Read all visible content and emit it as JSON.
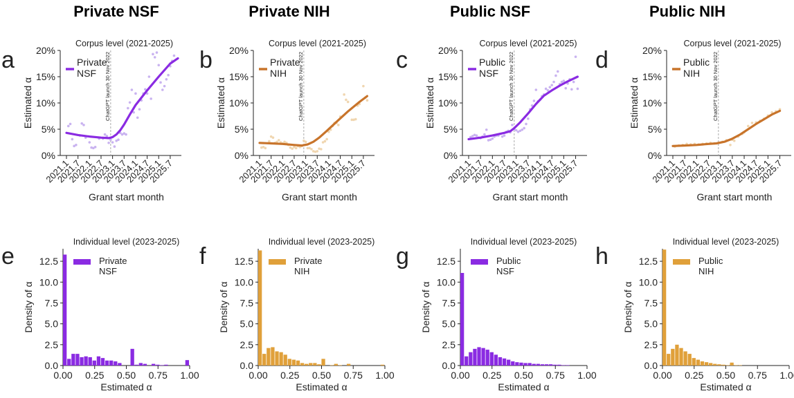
{
  "columns": [
    {
      "title": "Private NSF"
    },
    {
      "title": "Private NIH"
    },
    {
      "title": "Public NSF"
    },
    {
      "title": "Public NIH"
    }
  ],
  "colors": {
    "nsf": "#8a2be2",
    "nsf_light": "#c9b3f0",
    "nih_line": "#c8742b",
    "nih_light": "#f0d6b0",
    "nih_hist": "#e0a03a",
    "chatgpt_line": "#aaaaaa"
  },
  "chart_data": [
    {
      "panel": "a",
      "type": "line",
      "title": "Corpus level (2021-2025)",
      "xlabel": "Grant start month",
      "ylabel": "Estimated α",
      "legend": [
        "Private",
        "NSF"
      ],
      "legend_position": "top-left",
      "color_key": "nsf",
      "scatter_color_key": "nsf_light",
      "xticks": [
        "2021.1",
        "2021.7",
        "2022.1",
        "2022.7",
        "2023.1",
        "2023.7",
        "2024.1",
        "2024.7",
        "2025.1",
        "2025.7"
      ],
      "yticks": [
        "0%",
        "5%",
        "10%",
        "15%",
        "20%"
      ],
      "ylim": [
        0,
        20
      ],
      "annotation": "ChatGPT launch 30 Nov 2022",
      "trend": [
        [
          0,
          4.3
        ],
        [
          6,
          3.9
        ],
        [
          12,
          3.6
        ],
        [
          18,
          3.4
        ],
        [
          22,
          3.3
        ],
        [
          24,
          3.5
        ],
        [
          26,
          4.0
        ],
        [
          28,
          4.8
        ],
        [
          30,
          5.9
        ],
        [
          33,
          7.8
        ],
        [
          36,
          9.6
        ],
        [
          42,
          12.4
        ],
        [
          48,
          15.0
        ],
        [
          54,
          17.5
        ],
        [
          58,
          18.5
        ]
      ],
      "scatter": [
        [
          1,
          5.6
        ],
        [
          2,
          6.0
        ],
        [
          3,
          3.1
        ],
        [
          4,
          1.8
        ],
        [
          5,
          2.0
        ],
        [
          7,
          3.8
        ],
        [
          8,
          6.1
        ],
        [
          9,
          5.8
        ],
        [
          10,
          3.4
        ],
        [
          12,
          2.5
        ],
        [
          13,
          1.5
        ],
        [
          14,
          1.4
        ],
        [
          15,
          1.6
        ],
        [
          17,
          3.2
        ],
        [
          19,
          3.2
        ],
        [
          20,
          4.0
        ],
        [
          21,
          3.7
        ],
        [
          22,
          2.4
        ],
        [
          23,
          3.0
        ],
        [
          24,
          2.5
        ],
        [
          25,
          1.7
        ],
        [
          26,
          2.8
        ],
        [
          27,
          3.0
        ],
        [
          28,
          4.3
        ],
        [
          29,
          4.0
        ],
        [
          30,
          4.2
        ],
        [
          31,
          4.0
        ],
        [
          32,
          9.0
        ],
        [
          33,
          10.1
        ],
        [
          34,
          12.5
        ],
        [
          35,
          8.2
        ],
        [
          36,
          11.8
        ],
        [
          37,
          7.2
        ],
        [
          38,
          8.8
        ],
        [
          39,
          10.5
        ],
        [
          40,
          11.8
        ],
        [
          41,
          12.6
        ],
        [
          42,
          11.8
        ],
        [
          43,
          15.0
        ],
        [
          44,
          10.8
        ],
        [
          45,
          19.3
        ],
        [
          46,
          18.7
        ],
        [
          47,
          19.6
        ],
        [
          48,
          17.2
        ],
        [
          49,
          13.9
        ],
        [
          50,
          12.5
        ],
        [
          51,
          13.2
        ],
        [
          52,
          14.5
        ],
        [
          53,
          15.3
        ],
        [
          54,
          17.0
        ],
        [
          55,
          18.0
        ],
        [
          56,
          19.0
        ]
      ]
    },
    {
      "panel": "b",
      "type": "line",
      "title": "Corpus level (2021-2025)",
      "xlabel": "Grant start month",
      "ylabel": "Estimated α",
      "legend": [
        "Private",
        "NIH"
      ],
      "legend_position": "top-left",
      "color_key": "nih_line",
      "scatter_color_key": "nih_light",
      "xticks": [
        "2021.1",
        "2021.7",
        "2022.1",
        "2022.7",
        "2023.1",
        "2023.7",
        "2024.1",
        "2024.7",
        "2025.1",
        "2025.7"
      ],
      "yticks": [
        "0%",
        "5%",
        "10%",
        "15%",
        "20%"
      ],
      "ylim": [
        0,
        20
      ],
      "annotation": "ChatGPT launch 30 Nov 2022",
      "trend": [
        [
          0,
          2.4
        ],
        [
          6,
          2.3
        ],
        [
          12,
          2.2
        ],
        [
          18,
          2.0
        ],
        [
          22,
          1.9
        ],
        [
          25,
          2.1
        ],
        [
          28,
          2.6
        ],
        [
          31,
          3.4
        ],
        [
          35,
          4.7
        ],
        [
          40,
          6.4
        ],
        [
          46,
          8.4
        ],
        [
          52,
          10.2
        ],
        [
          56,
          11.3
        ]
      ],
      "scatter": [
        [
          1,
          1.5
        ],
        [
          2,
          1.6
        ],
        [
          3,
          1.4
        ],
        [
          5,
          2.7
        ],
        [
          6,
          3.6
        ],
        [
          7,
          3.4
        ],
        [
          8,
          2.4
        ],
        [
          9,
          2.6
        ],
        [
          10,
          2.9
        ],
        [
          11,
          2.5
        ],
        [
          12,
          2.3
        ],
        [
          13,
          2.6
        ],
        [
          14,
          2.4
        ],
        [
          15,
          2.0
        ],
        [
          16,
          1.5
        ],
        [
          17,
          1.3
        ],
        [
          18,
          1.6
        ],
        [
          19,
          1.4
        ],
        [
          20,
          1.8
        ],
        [
          21,
          1.6
        ],
        [
          22,
          1.8
        ],
        [
          23,
          2.8
        ],
        [
          24,
          2.6
        ],
        [
          25,
          1.4
        ],
        [
          26,
          1.4
        ],
        [
          27,
          1.2
        ],
        [
          28,
          0.8
        ],
        [
          29,
          0.7
        ],
        [
          30,
          0.8
        ],
        [
          31,
          1.3
        ],
        [
          32,
          1.2
        ],
        [
          33,
          2.5
        ],
        [
          34,
          2.7
        ],
        [
          35,
          3.1
        ],
        [
          36,
          4.5
        ],
        [
          37,
          4.9
        ],
        [
          38,
          5.6
        ],
        [
          39,
          6.2
        ],
        [
          40,
          6.2
        ],
        [
          41,
          5.8
        ],
        [
          42,
          7.4
        ],
        [
          44,
          11.6
        ],
        [
          45,
          10.6
        ],
        [
          46,
          10.2
        ],
        [
          48,
          6.8
        ],
        [
          49,
          6.8
        ],
        [
          50,
          6.9
        ],
        [
          51,
          9.5
        ],
        [
          52,
          9.8
        ],
        [
          54,
          13.2
        ],
        [
          55,
          11.0
        ],
        [
          56,
          10.5
        ]
      ]
    },
    {
      "panel": "c",
      "type": "line",
      "title": "Corpus level (2021-2025)",
      "xlabel": "Grant start month",
      "ylabel": "Estimated α",
      "legend": [
        "Public",
        "NSF"
      ],
      "legend_position": "top-left",
      "color_key": "nsf",
      "scatter_color_key": "nsf_light",
      "xticks": [
        "2021.1",
        "2021.7",
        "2022.1",
        "2022.7",
        "2023.1",
        "2023.7",
        "2024.1",
        "2024.7",
        "2025.1",
        "2025.7"
      ],
      "yticks": [
        "0%",
        "5%",
        "10%",
        "15%",
        "20%"
      ],
      "ylim": [
        0,
        20
      ],
      "annotation": "ChatGPT launch 30 Nov 2022",
      "trend": [
        [
          0,
          3.1
        ],
        [
          6,
          3.4
        ],
        [
          12,
          3.8
        ],
        [
          18,
          4.3
        ],
        [
          21,
          4.6
        ],
        [
          23,
          5.2
        ],
        [
          26,
          6.3
        ],
        [
          30,
          8.0
        ],
        [
          34,
          9.8
        ],
        [
          38,
          11.4
        ],
        [
          42,
          12.4
        ],
        [
          46,
          13.3
        ],
        [
          50,
          14.1
        ],
        [
          55,
          15.0
        ]
      ],
      "scatter": [
        [
          1,
          3.5
        ],
        [
          2,
          3.7
        ],
        [
          3,
          3.9
        ],
        [
          4,
          3.8
        ],
        [
          5,
          3.4
        ],
        [
          6,
          3.3
        ],
        [
          7,
          3.6
        ],
        [
          8,
          4.0
        ],
        [
          9,
          4.9
        ],
        [
          10,
          2.9
        ],
        [
          11,
          3.0
        ],
        [
          12,
          3.2
        ],
        [
          13,
          3.6
        ],
        [
          14,
          3.8
        ],
        [
          15,
          3.8
        ],
        [
          16,
          4.1
        ],
        [
          17,
          3.6
        ],
        [
          18,
          3.8
        ],
        [
          19,
          4.5
        ],
        [
          20,
          4.7
        ],
        [
          21,
          4.4
        ],
        [
          22,
          5.8
        ],
        [
          23,
          5.0
        ],
        [
          24,
          4.8
        ],
        [
          25,
          4.5
        ],
        [
          26,
          4.7
        ],
        [
          27,
          4.9
        ],
        [
          28,
          5.2
        ],
        [
          29,
          6.0
        ],
        [
          30,
          7.0
        ],
        [
          31,
          8.8
        ],
        [
          32,
          9.5
        ],
        [
          33,
          10.4
        ],
        [
          34,
          12.5
        ],
        [
          35,
          10.3
        ],
        [
          36,
          10.6
        ],
        [
          37,
          11.3
        ],
        [
          38,
          11.6
        ],
        [
          39,
          12.7
        ],
        [
          40,
          12.4
        ],
        [
          41,
          13.0
        ],
        [
          42,
          13.4
        ],
        [
          43,
          14.0
        ],
        [
          44,
          15.2
        ],
        [
          45,
          16.0
        ],
        [
          46,
          13.6
        ],
        [
          47,
          14.0
        ],
        [
          48,
          14.2
        ],
        [
          49,
          12.8
        ],
        [
          50,
          13.7
        ],
        [
          51,
          14.5
        ],
        [
          52,
          12.6
        ],
        [
          53,
          14.0
        ],
        [
          54,
          18.8
        ],
        [
          55,
          12.7
        ]
      ]
    },
    {
      "panel": "d",
      "type": "line",
      "title": "Corpus level (2021-2025)",
      "xlabel": "Grant start month",
      "ylabel": "Estimated α",
      "legend": [
        "Public",
        "NIH"
      ],
      "legend_position": "top-left",
      "color_key": "nih_line",
      "scatter_color_key": "nih_light",
      "xticks": [
        "2021.1",
        "2021.7",
        "2022.1",
        "2022.7",
        "2023.1",
        "2023.7",
        "2024.1",
        "2024.7",
        "2025.1",
        "2025.7"
      ],
      "yticks": [
        "0%",
        "5%",
        "10%",
        "15%",
        "20%"
      ],
      "ylim": [
        0,
        20
      ],
      "annotation": "ChatGPT launch 30 Nov 2022",
      "trend": [
        [
          0,
          1.8
        ],
        [
          6,
          1.9
        ],
        [
          12,
          2.0
        ],
        [
          18,
          2.2
        ],
        [
          22,
          2.3
        ],
        [
          26,
          2.6
        ],
        [
          30,
          3.2
        ],
        [
          34,
          4.0
        ],
        [
          38,
          5.0
        ],
        [
          42,
          6.0
        ],
        [
          46,
          6.9
        ],
        [
          50,
          7.8
        ],
        [
          54,
          8.5
        ]
      ],
      "scatter": [
        [
          1,
          1.7
        ],
        [
          3,
          1.9
        ],
        [
          5,
          2.0
        ],
        [
          7,
          2.2
        ],
        [
          9,
          2.1
        ],
        [
          11,
          2.2
        ],
        [
          13,
          2.1
        ],
        [
          15,
          2.2
        ],
        [
          17,
          2.3
        ],
        [
          19,
          2.4
        ],
        [
          21,
          2.3
        ],
        [
          23,
          2.4
        ],
        [
          25,
          2.6
        ],
        [
          27,
          2.9
        ],
        [
          29,
          2.0
        ],
        [
          30,
          3.0
        ],
        [
          31,
          2.8
        ],
        [
          33,
          3.6
        ],
        [
          35,
          4.1
        ],
        [
          36,
          4.4
        ],
        [
          38,
          5.6
        ],
        [
          40,
          6.2
        ],
        [
          42,
          6.3
        ],
        [
          44,
          6.6
        ],
        [
          46,
          7.0
        ],
        [
          48,
          7.6
        ],
        [
          50,
          8.2
        ],
        [
          52,
          8.4
        ],
        [
          54,
          8.8
        ]
      ]
    },
    {
      "panel": "e",
      "type": "bar",
      "title": "Individual level (2023-2025)",
      "xlabel": "Estimated α",
      "ylabel": "Density of α",
      "legend": [
        "Private",
        "NSF"
      ],
      "legend_position": "top-right",
      "color_key": "nsf",
      "xticks": [
        "0.00",
        "0.25",
        "0.50",
        "0.75",
        "1.00"
      ],
      "yticks": [
        "0.0",
        "2.5",
        "5.0",
        "7.5",
        "10.0",
        "12.5"
      ],
      "ylim": [
        0,
        14
      ],
      "xlim": [
        0,
        1
      ],
      "bin_width": 0.0333,
      "values": [
        13.3,
        0.8,
        1.4,
        1.4,
        1.0,
        1.1,
        1.0,
        0.6,
        1.1,
        0.9,
        0.6,
        0.6,
        0.5,
        0.3,
        0.0,
        0.0,
        2.0,
        0.1,
        0.3,
        0.2,
        0.0,
        0.2,
        0.1,
        0.05,
        0.1,
        0.0,
        0.0,
        0.0,
        0.0,
        0.65
      ]
    },
    {
      "panel": "f",
      "type": "bar",
      "title": "Individual level (2023-2025)",
      "xlabel": "Estimated α",
      "ylabel": "Density of α",
      "legend": [
        "Private",
        "NIH"
      ],
      "legend_position": "top-right",
      "color_key": "nih_hist",
      "xticks": [
        "0.00",
        "0.25",
        "0.50",
        "0.75",
        "1.00"
      ],
      "yticks": [
        "0.0",
        "2.5",
        "5.0",
        "7.5",
        "10.0",
        "12.5"
      ],
      "ylim": [
        0,
        14
      ],
      "xlim": [
        0,
        1
      ],
      "bin_width": 0.0333,
      "values": [
        13.8,
        1.4,
        2.1,
        2.2,
        1.7,
        1.6,
        1.3,
        0.8,
        0.7,
        0.6,
        0.3,
        0.2,
        0.3,
        0.3,
        0.15,
        0.8,
        0.0,
        0.05,
        0.2,
        0.05,
        0.0,
        0.2,
        0.0,
        0.0,
        0.0,
        0.0,
        0.0,
        0.0,
        0.0,
        0.1
      ]
    },
    {
      "panel": "g",
      "type": "bar",
      "title": "Individual level (2023-2025)",
      "xlabel": "Estimated α",
      "ylabel": "Density of α",
      "legend": [
        "Public",
        "NSF"
      ],
      "legend_position": "top-right",
      "color_key": "nsf",
      "xticks": [
        "0.00",
        "0.25",
        "0.50",
        "0.75",
        "1.00"
      ],
      "yticks": [
        "0.0",
        "2.5",
        "5.0",
        "7.5",
        "10.0",
        "12.5"
      ],
      "ylim": [
        0,
        14
      ],
      "xlim": [
        0,
        1
      ],
      "bin_width": 0.0333,
      "values": [
        11.1,
        1.1,
        1.6,
        2.0,
        2.2,
        2.1,
        1.9,
        1.6,
        1.3,
        1.0,
        0.85,
        0.7,
        0.5,
        0.4,
        0.35,
        0.3,
        0.3,
        0.2,
        0.2,
        0.15,
        0.15,
        0.15,
        0.1,
        0.1,
        0.05,
        0.05,
        0.0,
        0.0,
        0.0,
        0.0
      ]
    },
    {
      "panel": "h",
      "type": "bar",
      "title": "Individual level (2023-2025)",
      "xlabel": "Estimated α",
      "ylabel": "Density of α",
      "legend": [
        "Public",
        "NIH"
      ],
      "legend_position": "top-right",
      "color_key": "nih_hist",
      "xticks": [
        "0.00",
        "0.25",
        "0.50",
        "0.75",
        "1.00"
      ],
      "yticks": [
        "0.0",
        "2.5",
        "5.0",
        "7.5",
        "10.0",
        "12.5"
      ],
      "ylim": [
        0,
        14
      ],
      "xlim": [
        0,
        1
      ],
      "bin_width": 0.0333,
      "values": [
        13.9,
        1.4,
        2.0,
        2.5,
        2.1,
        1.7,
        1.4,
        0.9,
        0.7,
        0.5,
        0.4,
        0.3,
        0.2,
        0.15,
        0.1,
        0.05,
        0.35,
        0.05,
        0.05,
        0.0,
        0.0,
        0.0,
        0.0,
        0.0,
        0.0,
        0.0,
        0.0,
        0.0,
        0.0,
        0.0
      ]
    }
  ]
}
